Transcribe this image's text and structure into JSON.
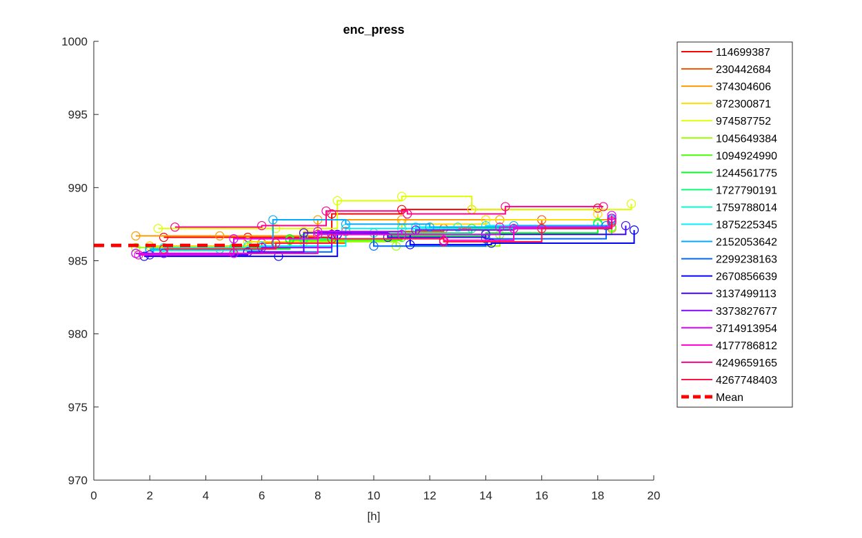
{
  "chart_data": {
    "type": "line",
    "title": "enc_press",
    "xlabel": "[h]",
    "ylabel": "",
    "xlim": [
      0,
      20
    ],
    "ylim": [
      970,
      1000
    ],
    "xticks": [
      0,
      2,
      4,
      6,
      8,
      10,
      12,
      14,
      16,
      18,
      20
    ],
    "yticks": [
      970,
      975,
      980,
      985,
      990,
      995,
      1000
    ],
    "grid": false,
    "legend_position": "outside-right",
    "series": [
      {
        "name": "114699387",
        "color": "#ff0000",
        "x": [
          2.5,
          5.5,
          8.5,
          11.0,
          13.5,
          18.0
        ],
        "y": [
          986.6,
          986.6,
          988.2,
          988.5,
          988.5,
          988.6
        ]
      },
      {
        "name": "230442684",
        "color": "#ff5500",
        "x": [
          2.0,
          6.0,
          9.0,
          12.5,
          16.0,
          18.5
        ],
        "y": [
          986.0,
          986.2,
          987.0,
          987.2,
          987.8,
          987.9
        ]
      },
      {
        "name": "374304606",
        "color": "#ff9900",
        "x": [
          1.5,
          4.5,
          8.0,
          11.0,
          14.5,
          18.5
        ],
        "y": [
          986.7,
          986.7,
          987.8,
          987.8,
          987.8,
          987.2
        ]
      },
      {
        "name": "872300871",
        "color": "#ffdd00",
        "x": [
          2.0,
          5.5,
          7.5,
          11.0,
          14.0,
          18.0
        ],
        "y": [
          986.0,
          986.3,
          987.0,
          987.5,
          987.8,
          988.2
        ]
      },
      {
        "name": "974587752",
        "color": "#ddff00",
        "x": [
          2.3,
          6.5,
          8.7,
          11.0,
          13.5,
          19.2
        ],
        "y": [
          987.2,
          987.2,
          989.1,
          989.4,
          988.5,
          988.9
        ]
      },
      {
        "name": "1045649384",
        "color": "#99ff00",
        "x": [
          1.5,
          5.5,
          7.5,
          10.8,
          14.5,
          18.0
        ],
        "y": [
          985.9,
          985.9,
          986.3,
          986.0,
          986.8,
          987.5
        ]
      },
      {
        "name": "1094924990",
        "color": "#44ff00",
        "x": [
          2.0,
          5.0,
          7.0,
          11.0,
          14.0,
          18.5
        ],
        "y": [
          985.8,
          985.8,
          986.4,
          986.6,
          986.8,
          987.3
        ]
      },
      {
        "name": "1244561775",
        "color": "#00ff22",
        "x": [
          2.0,
          4.5,
          7.0,
          10.5,
          14.0,
          18.0
        ],
        "y": [
          985.7,
          985.8,
          986.5,
          986.7,
          986.9,
          987.5
        ]
      },
      {
        "name": "1727790191",
        "color": "#00ff77",
        "x": [
          2.5,
          5.0,
          7.5,
          10.0,
          13.5,
          18.0
        ],
        "y": [
          985.8,
          985.9,
          986.5,
          986.9,
          987.2,
          987.6
        ]
      },
      {
        "name": "1759788014",
        "color": "#00ffcc",
        "x": [
          2.5,
          5.5,
          8.0,
          11.0,
          13.0,
          18.5
        ],
        "y": [
          985.9,
          986.0,
          986.8,
          987.2,
          987.3,
          987.7
        ]
      },
      {
        "name": "1875225345",
        "color": "#00eeff",
        "x": [
          2.0,
          6.0,
          9.0,
          11.5,
          14.0,
          18.5
        ],
        "y": [
          985.7,
          986.0,
          987.2,
          987.3,
          987.4,
          987.8
        ]
      },
      {
        "name": "2152053642",
        "color": "#00aaff",
        "x": [
          2.0,
          6.4,
          9.0,
          12.0,
          15.0,
          18.5
        ],
        "y": [
          985.8,
          987.8,
          987.5,
          987.3,
          987.4,
          987.8
        ]
      },
      {
        "name": "2299238163",
        "color": "#0066ff",
        "x": [
          1.5,
          5.5,
          8.5,
          10.0,
          14.0,
          18.3
        ],
        "y": [
          985.5,
          985.6,
          986.8,
          986.0,
          986.5,
          987.4
        ]
      },
      {
        "name": "2670856639",
        "color": "#0000ff",
        "x": [
          1.8,
          6.6,
          8.7,
          11.3,
          14.2,
          19.3
        ],
        "y": [
          985.3,
          985.3,
          986.8,
          986.1,
          986.2,
          987.1
        ]
      },
      {
        "name": "3137499113",
        "color": "#4400ff",
        "x": [
          2.0,
          5.5,
          7.5,
          10.5,
          14.0,
          19.0
        ],
        "y": [
          985.4,
          985.6,
          986.9,
          986.6,
          986.8,
          987.4
        ]
      },
      {
        "name": "3373827677",
        "color": "#8800ff",
        "x": [
          2.5,
          6.0,
          8.5,
          11.5,
          15.0,
          18.5
        ],
        "y": [
          985.5,
          985.9,
          986.8,
          987.1,
          987.2,
          987.9
        ]
      },
      {
        "name": "3714913954",
        "color": "#dd00ff",
        "x": [
          1.5,
          5.0,
          8.0,
          11.0,
          14.5,
          18.5
        ],
        "y": [
          985.5,
          986.5,
          987.0,
          986.8,
          987.3,
          988.1
        ]
      },
      {
        "name": "4177786812",
        "color": "#ff00cc",
        "x": [
          1.6,
          5.0,
          8.0,
          12.5,
          15.0,
          18.5
        ],
        "y": [
          985.4,
          985.5,
          986.8,
          986.4,
          987.2,
          987.6
        ]
      },
      {
        "name": "4249659165",
        "color": "#ff0088",
        "x": [
          2.9,
          6.0,
          8.3,
          11.2,
          14.7,
          18.2
        ],
        "y": [
          987.3,
          987.4,
          988.4,
          988.2,
          988.7,
          988.7
        ]
      },
      {
        "name": "4267748403",
        "color": "#ff1144",
        "x": [
          2.5,
          6.5,
          8.5,
          12.5,
          16.0,
          18.5
        ],
        "y": [
          985.8,
          986.2,
          986.5,
          986.3,
          987.2,
          987.7
        ]
      }
    ],
    "mean": {
      "name": "Mean",
      "color": "#ff0000",
      "x": [
        0,
        6
      ],
      "y": [
        986.05,
        986.05
      ]
    }
  }
}
